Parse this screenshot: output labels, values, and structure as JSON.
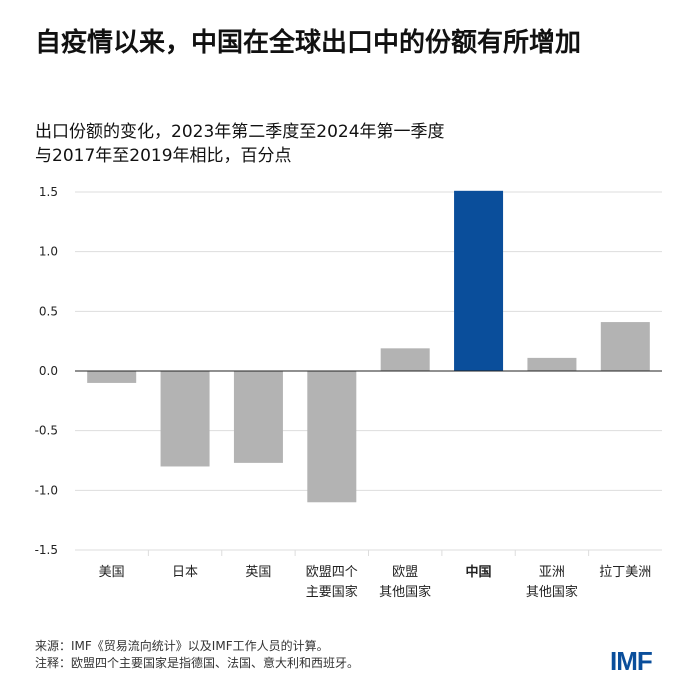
{
  "title": "自疫情以来，中国在全球出口中的份额有所增加",
  "subtitle_line1": "出口份额的变化，2023年第二季度至2024年第一季度",
  "subtitle_line2": "与2017年至2019年相比，百分点",
  "chart_data": {
    "type": "bar",
    "categories": [
      [
        "美国"
      ],
      [
        "日本"
      ],
      [
        "英国"
      ],
      [
        "欧盟四个",
        "主要国家"
      ],
      [
        "欧盟",
        "其他国家"
      ],
      [
        "中国"
      ],
      [
        "亚洲",
        "其他国家"
      ],
      [
        "拉丁美洲"
      ]
    ],
    "values": [
      -0.1,
      -0.8,
      -0.77,
      -1.1,
      0.19,
      1.51,
      0.11,
      0.41
    ],
    "highlight_index": 5,
    "colors": {
      "default": "#b3b3b3",
      "highlight": "#0a4e9b",
      "grid": "#dddddd",
      "zero": "#222222"
    },
    "ylim": [
      -1.5,
      1.5
    ],
    "yticks": [
      "1.5",
      "1.0",
      "0.5",
      "0.0",
      "-0.5",
      "-1.0",
      "-1.5"
    ],
    "grid": true
  },
  "notes": {
    "source": "来源：IMF《贸易流向统计》以及IMF工作人员的计算。",
    "note": "注释：欧盟四个主要国家是指德国、法国、意大利和西班牙。"
  },
  "logo": "IMF"
}
